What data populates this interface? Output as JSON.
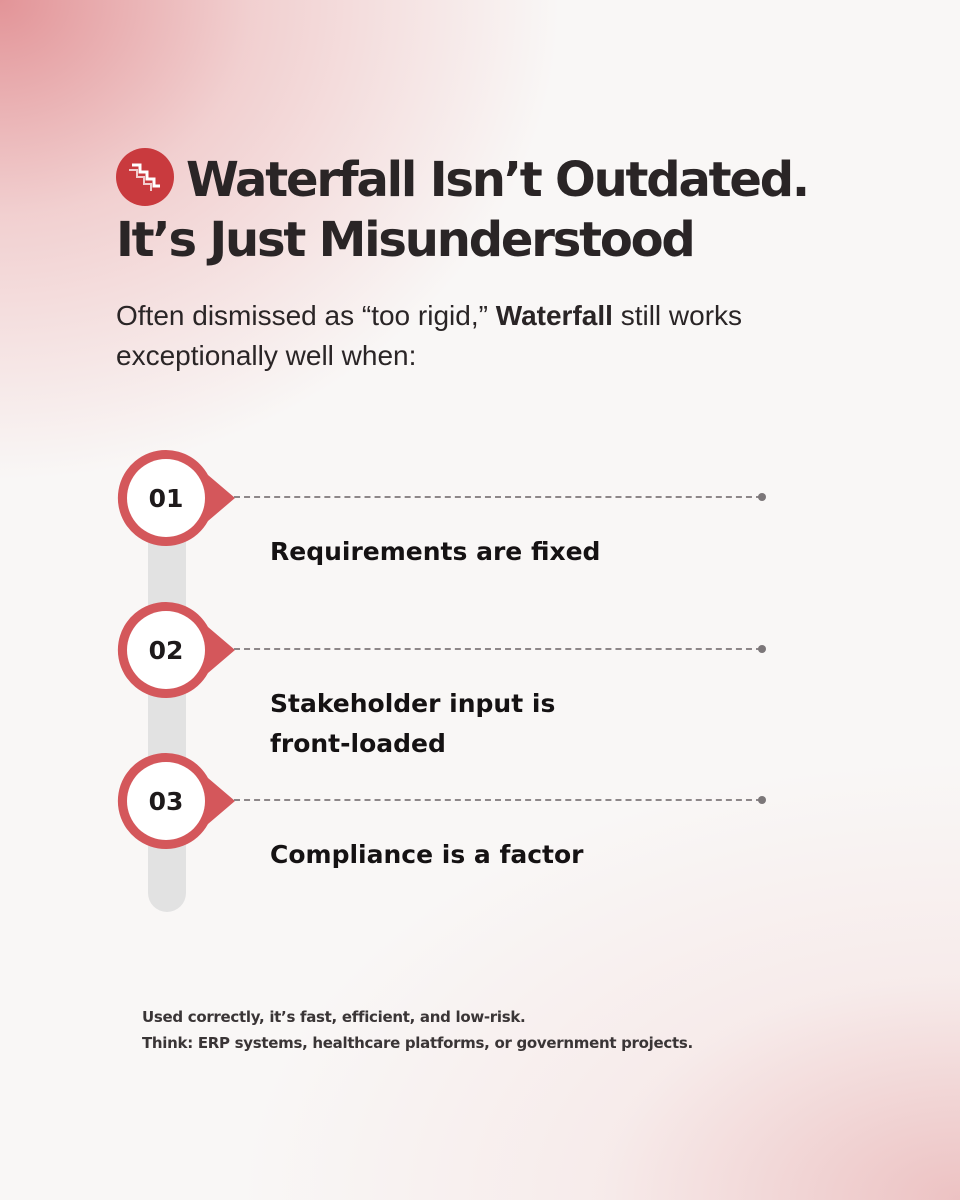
{
  "heading": {
    "icon": "stairs-icon",
    "line1": "Waterfall Isn’t Outdated.",
    "line2": "It’s Just Misunderstood"
  },
  "intro": {
    "part1": "Often dismissed as “too rigid,” ",
    "bold": "Waterfall",
    "part2": " still works exceptionally well when:"
  },
  "steps": [
    {
      "number": "01",
      "text": "Requirements are fixed"
    },
    {
      "number": "02",
      "text": "Stakeholder input is front-loaded"
    },
    {
      "number": "03",
      "text": "Compliance is a factor"
    }
  ],
  "footer": {
    "line1": "Used correctly, it’s fast, efficient, and low-risk.",
    "line2": "Think: ERP systems, healthcare platforms, or government projects."
  },
  "colors": {
    "accent": "#c93a3e",
    "marker_ring": "#d4575b",
    "text_dark": "#2a2526",
    "track": "#e2e2e2"
  }
}
